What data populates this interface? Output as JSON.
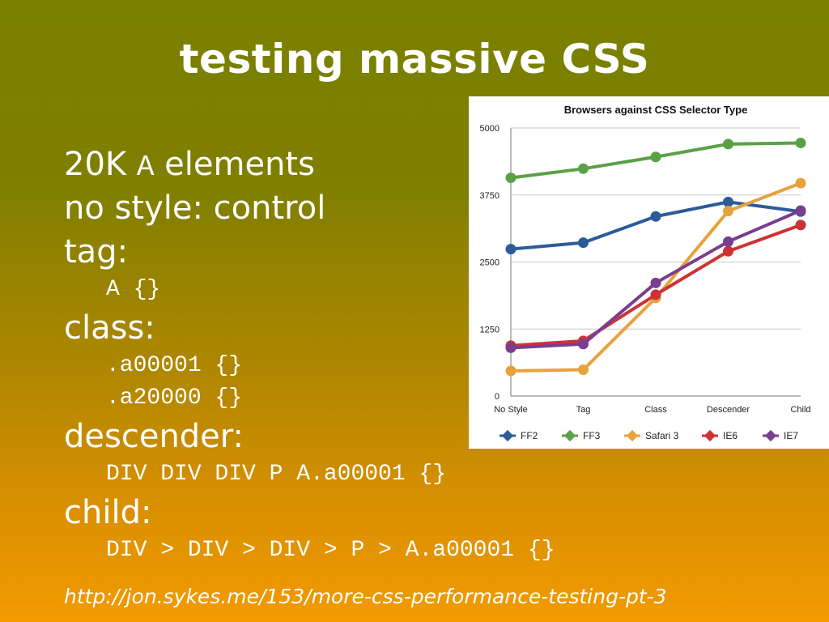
{
  "slide": {
    "title": "testing massive CSS",
    "lines": [
      {
        "kind": "big",
        "parts": [
          {
            "t": "20K ",
            "mono": false
          },
          {
            "t": "A",
            "mono": true
          },
          {
            "t": " elements",
            "mono": false
          }
        ]
      },
      {
        "kind": "big",
        "parts": [
          {
            "t": "no style: control",
            "mono": false
          }
        ]
      },
      {
        "kind": "big",
        "parts": [
          {
            "t": "tag:",
            "mono": false
          }
        ]
      },
      {
        "kind": "code",
        "parts": [
          {
            "t": "A {}",
            "mono": true
          }
        ]
      },
      {
        "kind": "big",
        "parts": [
          {
            "t": "class:",
            "mono": false
          }
        ]
      },
      {
        "kind": "code",
        "parts": [
          {
            "t": ".a00001 {}",
            "mono": true
          }
        ]
      },
      {
        "kind": "code",
        "parts": [
          {
            "t": ".a20000 {}",
            "mono": true
          }
        ]
      },
      {
        "kind": "big",
        "parts": [
          {
            "t": "descender:",
            "mono": false
          }
        ]
      },
      {
        "kind": "code",
        "parts": [
          {
            "t": "DIV DIV DIV P A.a00001 {}",
            "mono": true
          }
        ]
      },
      {
        "kind": "big",
        "parts": [
          {
            "t": "child:",
            "mono": false
          }
        ]
      },
      {
        "kind": "code",
        "parts": [
          {
            "t": "DIV > DIV > DIV > P > A.a00001 {}",
            "mono": true
          }
        ]
      }
    ],
    "url": "http://jon.sykes.me/153/more-css-performance-testing-pt-3"
  },
  "chart_data": {
    "type": "line",
    "title": "Browsers against CSS Selector Type",
    "categories": [
      "No Style",
      "Tag",
      "Class",
      "Descender",
      "Child"
    ],
    "ylim": [
      0,
      5000
    ],
    "yticks": [
      "0",
      "1250",
      "2500",
      "3750",
      "5000"
    ],
    "grid": true,
    "legend_position": "bottom",
    "series": [
      {
        "name": "FF2",
        "color": "#2d5b9a",
        "values": [
          2740,
          2860,
          3350,
          3620,
          3440
        ]
      },
      {
        "name": "FF3",
        "color": "#5aa146",
        "values": [
          4070,
          4240,
          4460,
          4700,
          4720
        ]
      },
      {
        "name": "Safari 3",
        "color": "#e8a23c",
        "values": [
          470,
          490,
          1830,
          3450,
          3970
        ]
      },
      {
        "name": "IE6",
        "color": "#cc3333",
        "values": [
          940,
          1030,
          1890,
          2700,
          3190
        ]
      },
      {
        "name": "IE7",
        "color": "#7a3d8f",
        "values": [
          900,
          970,
          2110,
          2880,
          3460
        ]
      }
    ]
  }
}
